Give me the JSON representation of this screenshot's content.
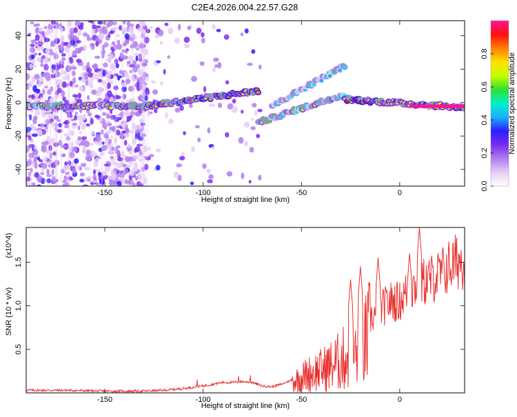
{
  "figure_title": "C2E4.2026.004.22.57.G28",
  "colors": {
    "line": "#e8302e",
    "axes": "#000000",
    "colormap": [
      "#ffffff",
      "#e6cdf7",
      "#b07cf0",
      "#7a2cf0",
      "#2c1cff",
      "#1ab0ff",
      "#00f0c8",
      "#30e030",
      "#c8ff00",
      "#ffe000",
      "#ff8000",
      "#ff1010",
      "#ff1493"
    ]
  },
  "chart_data": [
    {
      "type": "heatmap",
      "xlabel": "Height of straight line (km)",
      "ylabel": "Frequency (Hz)",
      "xlim": [
        -190,
        33
      ],
      "ylim": [
        -50,
        49
      ],
      "xticks": [
        -150,
        -100,
        -50,
        0
      ],
      "yticks": [
        -40,
        -20,
        0,
        20,
        40
      ],
      "colorbar": {
        "label": "Normalized spectral amplitude",
        "range": [
          0.0,
          1.0
        ],
        "ticks": [
          "0.0",
          "0.2",
          "0.4",
          "0.6",
          "0.8"
        ]
      },
      "ridges": [
        {
          "x0": -190,
          "x1": -128,
          "f0": -2,
          "f1": -2,
          "amplitude": 0.35
        },
        {
          "x0": -128,
          "x1": -72,
          "f0": -2,
          "f1": 7,
          "amplitude": 0.45
        },
        {
          "x0": -72,
          "x1": -28,
          "f0": -12,
          "f1": 5,
          "amplitude": 0.3
        },
        {
          "x0": -65,
          "x1": -28,
          "f0": -2,
          "f1": 22,
          "amplitude": 0.25
        },
        {
          "x0": -28,
          "x1": 33,
          "f0": 2,
          "f1": -3,
          "amplitude": 0.5
        }
      ],
      "scatter_regions": [
        {
          "x0": -190,
          "x1": -128,
          "f0": -50,
          "f1": 49,
          "density": 1.0
        },
        {
          "x0": -128,
          "x1": -70,
          "f0": -50,
          "f1": 49,
          "density": 0.12
        }
      ]
    },
    {
      "type": "line",
      "xlabel": "Height of straight line (km)",
      "ylabel": "SNR (10 * v/v)",
      "y_multiplier": "(x10^4)",
      "xlim": [
        -190,
        33
      ],
      "ylim": [
        0,
        1.9
      ],
      "xticks": [
        -150,
        -100,
        -50,
        0
      ],
      "yticks": [
        0.5,
        1.0,
        1.5
      ],
      "ytick_labels": [
        "0.5",
        "1.0",
        "1.5"
      ],
      "series": [
        {
          "x": [
            -190,
            -170,
            -150,
            -130,
            -120,
            -110,
            -100,
            -95,
            -90,
            -85,
            -80,
            -75,
            -70,
            -65,
            -60,
            -55,
            -50,
            -45,
            -40,
            -35,
            -30,
            -25,
            -20,
            -15,
            -10,
            -5,
            0,
            5,
            10,
            15,
            20,
            25,
            30,
            33
          ],
          "y": [
            0.03,
            0.03,
            0.02,
            0.02,
            0.03,
            0.05,
            0.08,
            0.1,
            0.12,
            0.12,
            0.13,
            0.12,
            0.08,
            0.07,
            0.1,
            0.15,
            0.22,
            0.28,
            0.32,
            0.38,
            0.45,
            0.55,
            0.55,
            0.85,
            0.95,
            1.05,
            1.05,
            1.2,
            1.25,
            1.3,
            1.35,
            1.45,
            1.52,
            1.52
          ]
        }
      ],
      "peaks": [
        {
          "x": -103,
          "y": 0.15
        },
        {
          "x": -82,
          "y": 0.19
        },
        {
          "x": -76,
          "y": 0.2
        },
        {
          "x": -25,
          "y": 1.3
        },
        {
          "x": -20,
          "y": 1.45
        },
        {
          "x": -11,
          "y": 1.55
        },
        {
          "x": 5,
          "y": 1.6
        },
        {
          "x": 10,
          "y": 1.9
        }
      ]
    }
  ]
}
